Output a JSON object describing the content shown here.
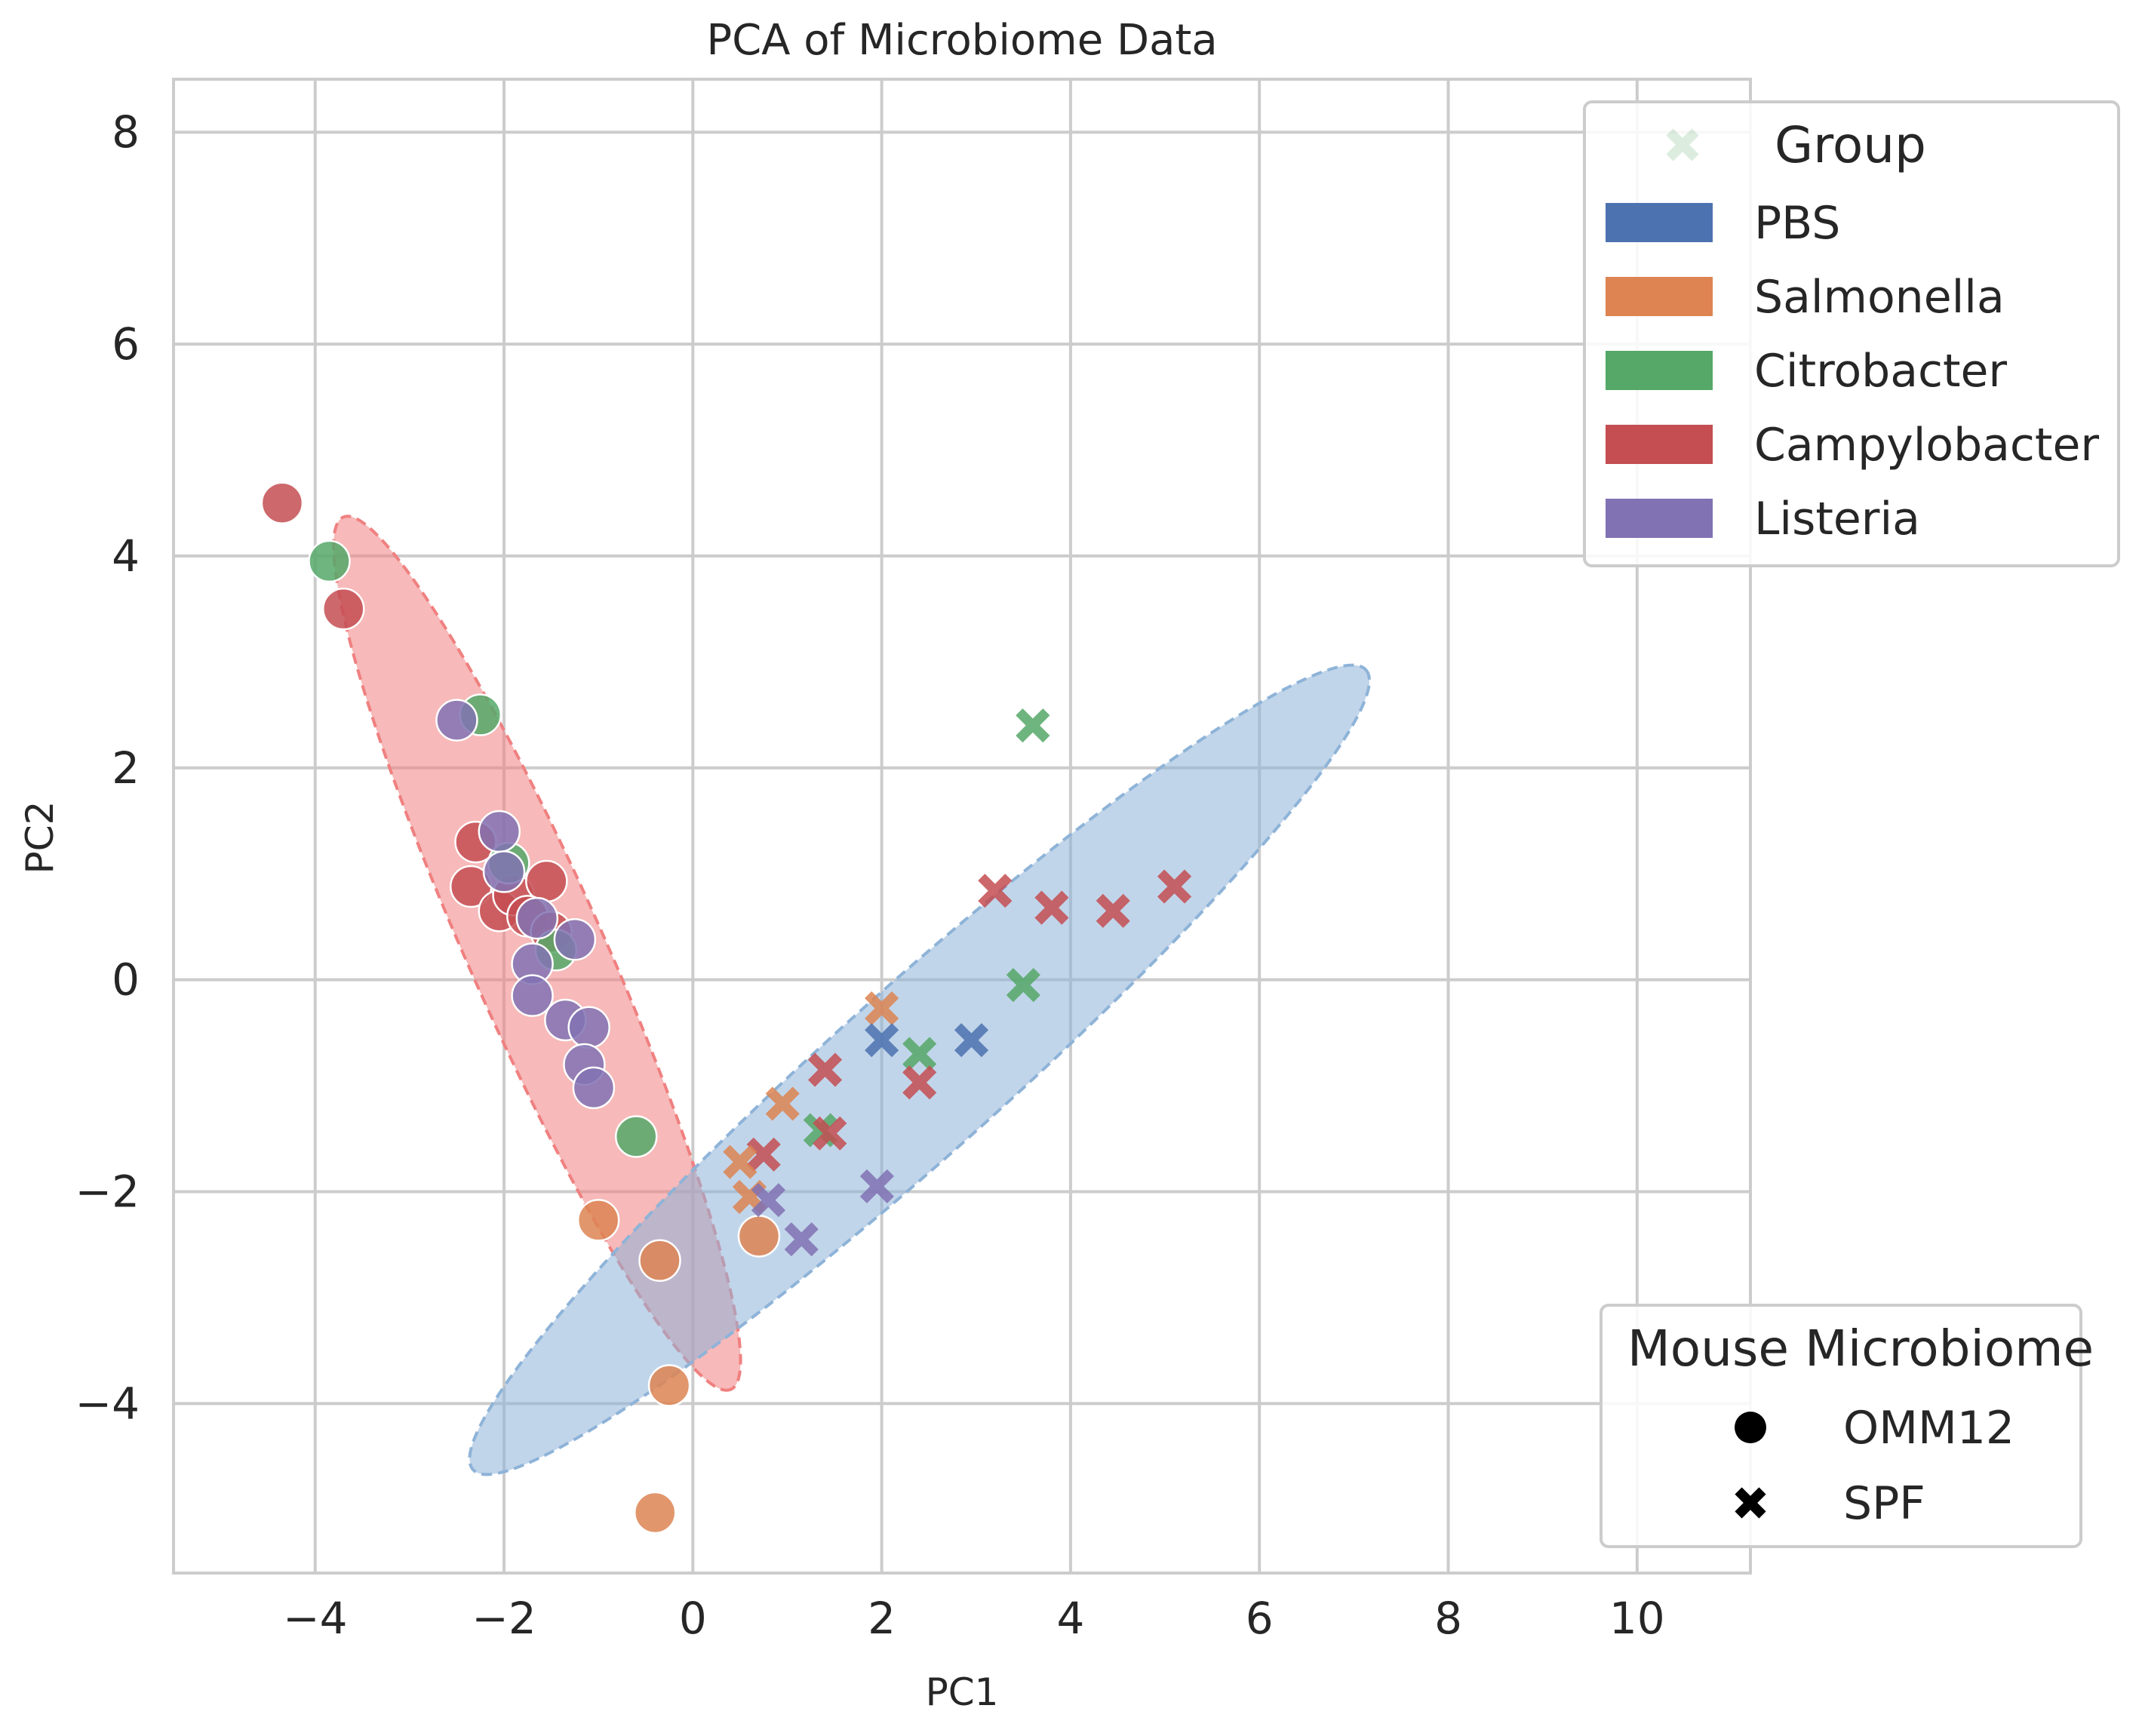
{
  "chart_data": {
    "type": "scatter",
    "title": "PCA of Microbiome Data",
    "xlabel": "PC1",
    "ylabel": "PC2",
    "xlim": [
      -5.5,
      11.2
    ],
    "ylim": [
      -5.6,
      8.5
    ],
    "xticks": [
      -4,
      -2,
      0,
      2,
      4,
      6,
      8,
      10
    ],
    "xtick_labels": [
      "−4",
      "−2",
      "0",
      "2",
      "4",
      "6",
      "8",
      "10"
    ],
    "yticks": [
      -4,
      -2,
      0,
      2,
      4,
      6,
      8
    ],
    "ytick_labels": [
      "−4",
      "−2",
      "0",
      "2",
      "4",
      "6",
      "8"
    ],
    "grid": true,
    "colors": {
      "PBS": "#4c72b0",
      "Salmonella": "#dd8452",
      "Citrobacter": "#55a868",
      "Campylobacter": "#c44e52",
      "Listeria": "#8172b3"
    },
    "legend_group": {
      "title": "Group",
      "placement": "top-right",
      "entries": [
        "PBS",
        "Salmonella",
        "Citrobacter",
        "Campylobacter",
        "Listeria"
      ]
    },
    "legend_microbiome": {
      "title": "Mouse Microbiome",
      "placement": "lower-right",
      "entries": [
        {
          "label": "OMM12",
          "marker": "circle"
        },
        {
          "label": "SPF",
          "marker": "x"
        }
      ]
    },
    "ellipses": [
      {
        "microbiome": "OMM12",
        "color": "#f08080",
        "center": [
          -1.65,
          0.25
        ],
        "angle_deg": -63.5,
        "semi_major": 4.6,
        "semi_minor": 0.7
      },
      {
        "microbiome": "SPF",
        "color": "#8eb3d8",
        "center": [
          2.4,
          -0.85
        ],
        "angle_deg": 38.6,
        "semi_major": 6.05,
        "semi_minor": 0.82
      }
    ],
    "series": [
      {
        "microbiome": "OMM12",
        "marker": "circle",
        "group": "Campylobacter",
        "points": [
          [
            -4.35,
            4.5
          ],
          [
            -3.7,
            3.5
          ],
          [
            -2.3,
            1.3
          ],
          [
            -2.35,
            0.88
          ],
          [
            -2.05,
            0.65
          ],
          [
            -1.9,
            0.8
          ],
          [
            -1.55,
            0.93
          ],
          [
            -1.75,
            0.6
          ],
          [
            -1.5,
            0.45
          ]
        ]
      },
      {
        "microbiome": "OMM12",
        "marker": "circle",
        "group": "Citrobacter",
        "points": [
          [
            -3.85,
            3.95
          ],
          [
            -2.25,
            2.5
          ],
          [
            -1.95,
            1.1
          ],
          [
            -1.45,
            0.28
          ],
          [
            -0.6,
            -1.48
          ]
        ]
      },
      {
        "microbiome": "OMM12",
        "marker": "circle",
        "group": "Listeria",
        "points": [
          [
            -2.5,
            2.45
          ],
          [
            -2.05,
            1.4
          ],
          [
            -2.0,
            1.02
          ],
          [
            -1.65,
            0.58
          ],
          [
            -1.7,
            0.15
          ],
          [
            -1.25,
            0.38
          ],
          [
            -1.7,
            -0.15
          ],
          [
            -1.35,
            -0.38
          ],
          [
            -1.1,
            -0.45
          ],
          [
            -1.15,
            -0.8
          ],
          [
            -1.05,
            -1.02
          ]
        ]
      },
      {
        "microbiome": "OMM12",
        "marker": "circle",
        "group": "Salmonella",
        "points": [
          [
            -1.0,
            -2.27
          ],
          [
            -0.35,
            -2.65
          ],
          [
            0.7,
            -2.42
          ],
          [
            -0.25,
            -3.83
          ],
          [
            -0.4,
            -5.03
          ]
        ]
      },
      {
        "microbiome": "SPF",
        "marker": "x",
        "group": "Citrobacter",
        "points": [
          [
            3.6,
            2.4
          ],
          [
            3.5,
            -0.05
          ],
          [
            2.4,
            -0.7
          ],
          [
            1.35,
            -1.42
          ]
        ]
      },
      {
        "microbiome": "SPF",
        "marker": "x",
        "group": "Campylobacter",
        "points": [
          [
            5.1,
            0.88
          ],
          [
            4.45,
            0.65
          ],
          [
            3.8,
            0.68
          ],
          [
            3.2,
            0.84
          ],
          [
            2.4,
            -0.97
          ],
          [
            1.45,
            -1.45
          ],
          [
            1.4,
            -0.85
          ],
          [
            0.75,
            -1.65
          ]
        ]
      },
      {
        "microbiome": "SPF",
        "marker": "x",
        "group": "Salmonella",
        "points": [
          [
            2.0,
            -0.27
          ],
          [
            0.95,
            -1.17
          ],
          [
            0.5,
            -1.72
          ],
          [
            0.6,
            -2.05
          ]
        ]
      },
      {
        "microbiome": "SPF",
        "marker": "x",
        "group": "PBS",
        "points": [
          [
            2.0,
            -0.57
          ],
          [
            2.95,
            -0.57
          ]
        ]
      },
      {
        "microbiome": "SPF",
        "marker": "x",
        "group": "Listeria",
        "points": [
          [
            1.95,
            -1.95
          ],
          [
            0.8,
            -2.08
          ],
          [
            1.15,
            -2.45
          ]
        ]
      }
    ]
  }
}
